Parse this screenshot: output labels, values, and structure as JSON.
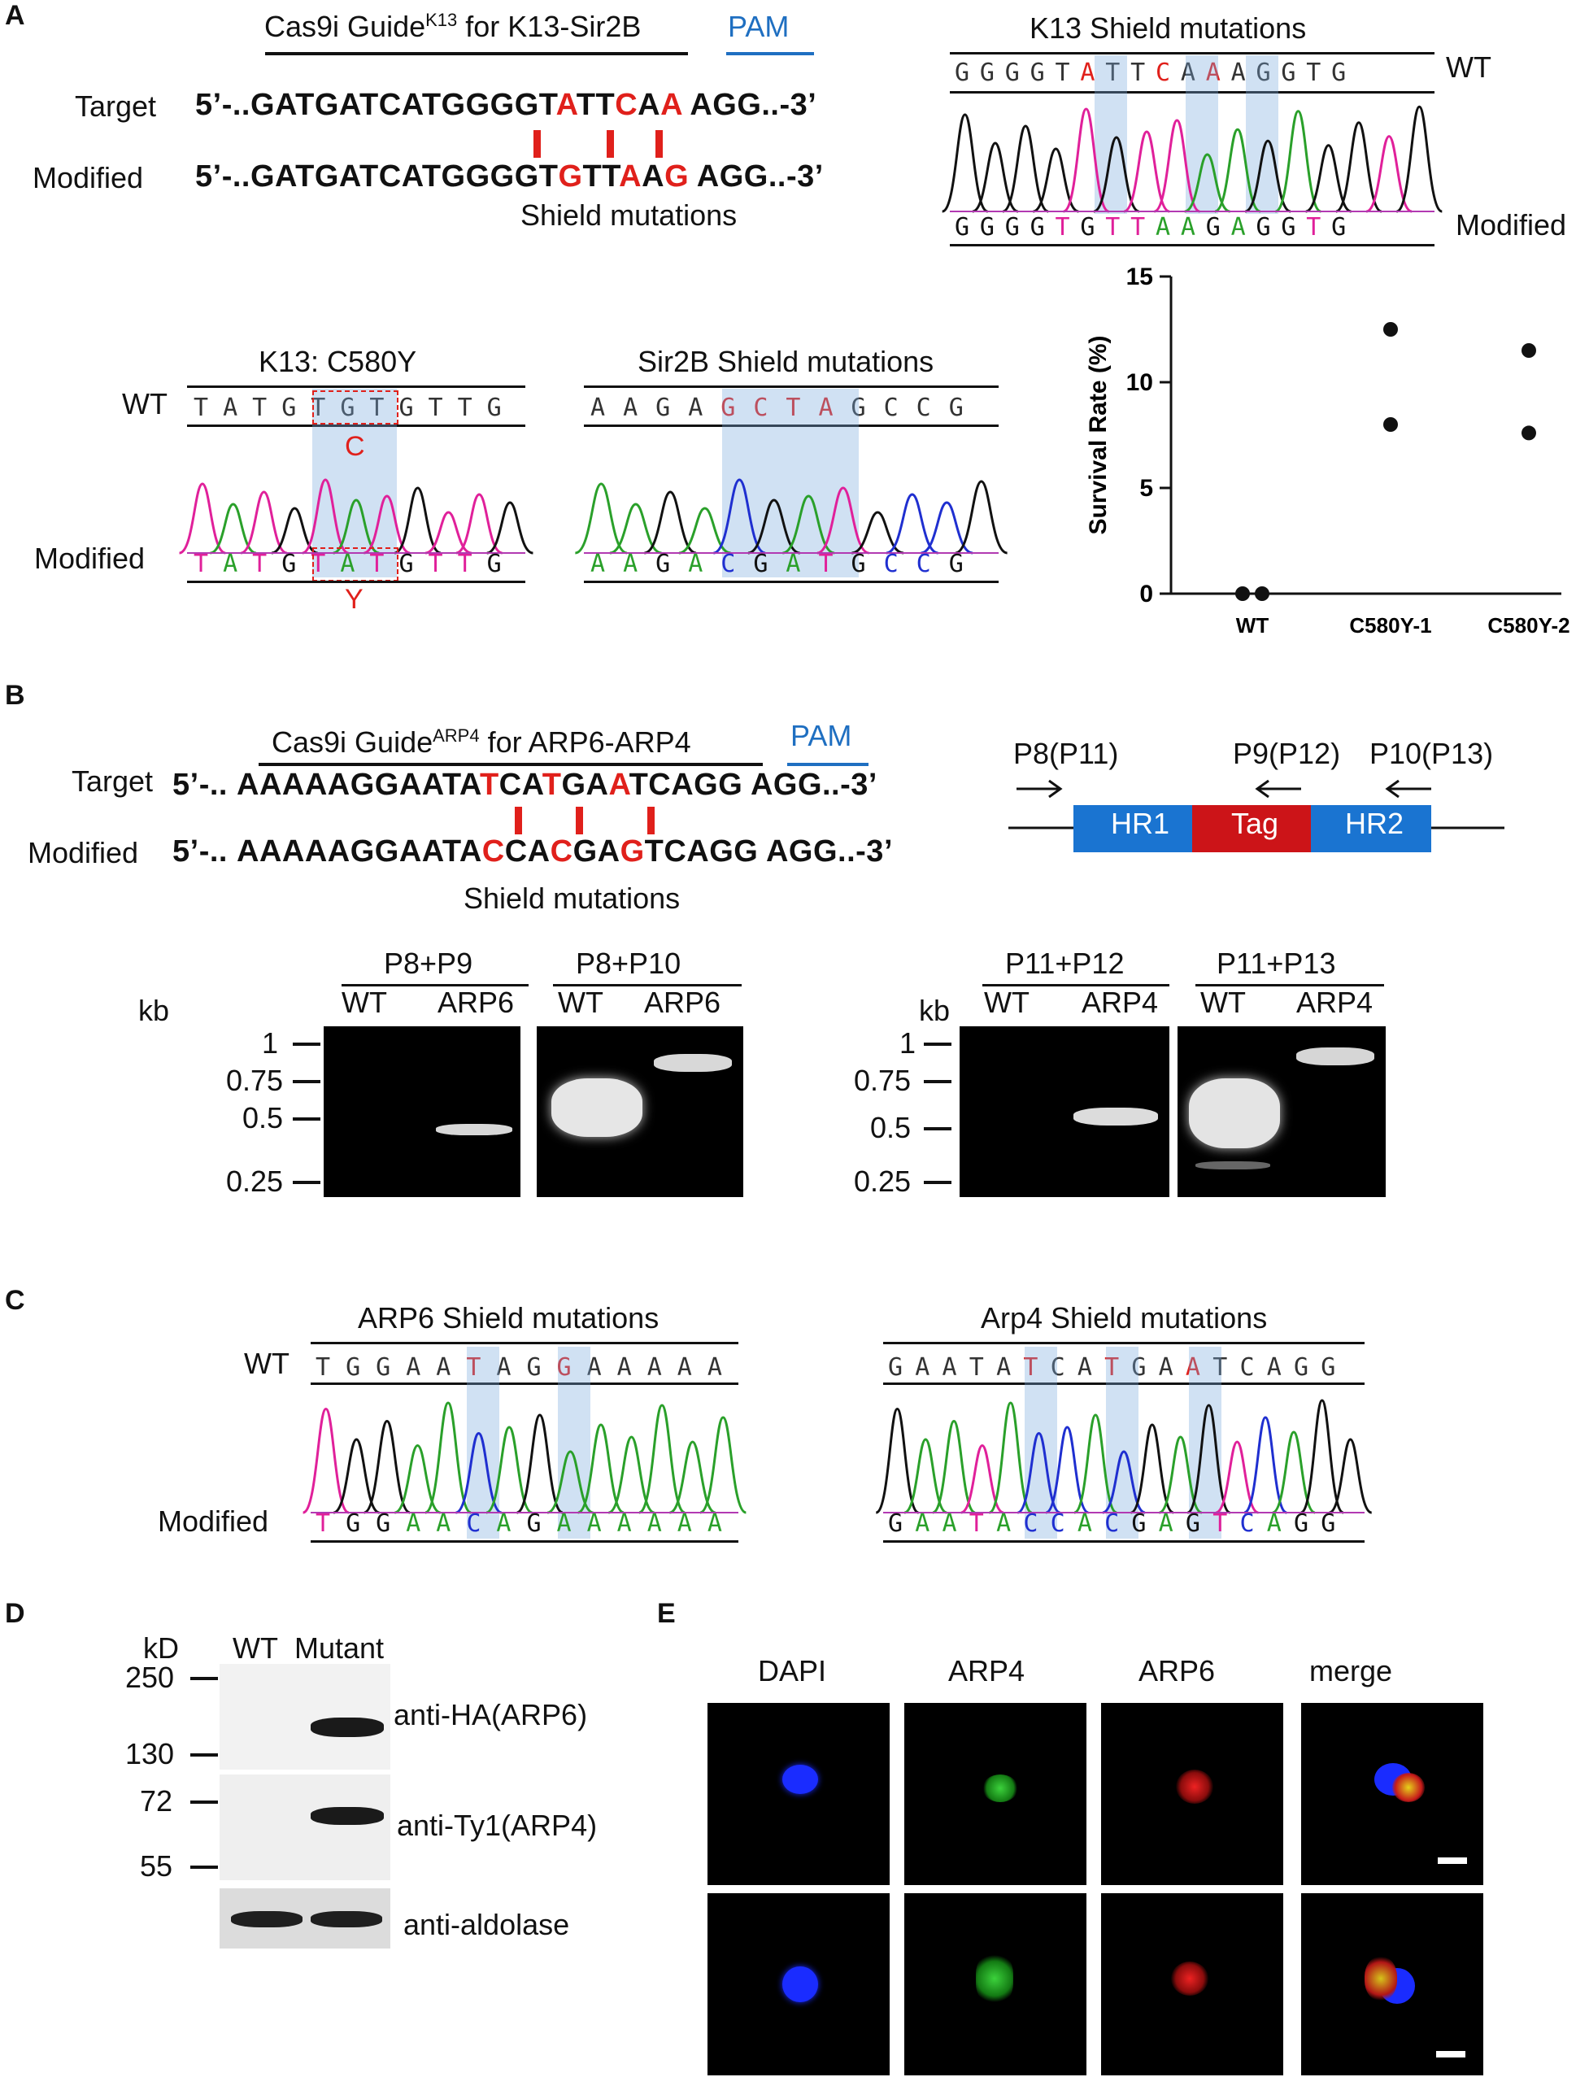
{
  "panels": {
    "A": "A",
    "B": "B",
    "C": "C",
    "D": "D",
    "E": "E"
  },
  "panelA": {
    "guide_label": "Cas9i Guide",
    "guide_sup": "K13",
    "guide_suffix": " for K13-Sir2B",
    "pam": "PAM",
    "target_label": "Target",
    "modified_label": "Modified",
    "target_prefix": "5’-..",
    "modified_prefix": "5’-..",
    "target_seq": [
      {
        "t": "GATGATCATGGGGT",
        "red": false
      },
      {
        "t": "A",
        "red": true
      },
      {
        "t": "TT",
        "red": false
      },
      {
        "t": "C",
        "red": true
      },
      {
        "t": "A",
        "red": false
      },
      {
        "t": "A",
        "red": true
      },
      {
        "t": " AGG..-3’",
        "red": false
      }
    ],
    "modified_seq": [
      {
        "t": "GATGATCATGGGGT",
        "red": false
      },
      {
        "t": "G",
        "red": true
      },
      {
        "t": "TT",
        "red": false
      },
      {
        "t": "A",
        "red": true
      },
      {
        "t": "A",
        "red": false
      },
      {
        "t": "G",
        "red": true
      },
      {
        "t": " AGG..-3’",
        "red": false
      }
    ],
    "shield_label": "Shield mutations",
    "k13_title": "K13 Shield mutations",
    "k13_wt_label": "WT",
    "k13_mod_label": "Modified",
    "k13_wt_seq": "GGGGTATTCAAAGGTG",
    "k13_mod_seq": "GGGGTGTTAAGAGGTG",
    "c580_title": "K13: C580Y",
    "c580_wt_label": "WT",
    "c580_mod_label": "Modified",
    "c580_wt_seq": "TATGTGTGTTG",
    "c580_mod_seq": "TATGTATGTTG",
    "c580_c": "C",
    "c580_y": "Y",
    "sir2b_title": "Sir2B Shield mutations",
    "sir2b_wt_seq": "AAGAGCTAGCCG",
    "sir2b_mod_seq": "AAGACGATGCCG"
  },
  "chart_data": {
    "type": "scatter",
    "categories": [
      "WT",
      "C580Y-1",
      "C580Y-2"
    ],
    "series": [
      {
        "values": [
          [
            0,
            0
          ],
          [
            12.5,
            8.0
          ],
          [
            11.5,
            7.6
          ]
        ]
      }
    ],
    "ylabel": "Survival Rate (%)",
    "ylim": [
      0,
      15
    ],
    "yticks": [
      "0",
      "5",
      "10",
      "15"
    ]
  },
  "panelB": {
    "guide_label": "Cas9i Guide",
    "guide_sup": "ARP4",
    "guide_suffix": " for ARP6-ARP4",
    "pam": "PAM",
    "target_label": "Target",
    "modified_label": "Modified",
    "target_prefix": "5’-..",
    "modified_prefix": "5’-..",
    "target_seq": [
      {
        "t": "AAAAAGGAATA",
        "red": false
      },
      {
        "t": "T",
        "red": true
      },
      {
        "t": "CA",
        "red": false
      },
      {
        "t": "T",
        "red": true
      },
      {
        "t": "GA",
        "red": false
      },
      {
        "t": "A",
        "red": true
      },
      {
        "t": "TCAGG AGG..-3’",
        "red": false
      }
    ],
    "modified_seq": [
      {
        "t": "AAAAAGGAATA",
        "red": false
      },
      {
        "t": "C",
        "red": true
      },
      {
        "t": "CA",
        "red": false
      },
      {
        "t": "C",
        "red": true
      },
      {
        "t": "GA",
        "red": false
      },
      {
        "t": "G",
        "red": true
      },
      {
        "t": "TCAGG AGG..-3’",
        "red": false
      }
    ],
    "shield_label": "Shield mutations",
    "primers": {
      "p8": "P8(P11)",
      "p9": "P9(P12)",
      "p10": "P10(P13)"
    },
    "construct": {
      "hr1": "HR1",
      "tag": "Tag",
      "hr2": "HR2"
    },
    "gel_groups": [
      {
        "title": "P8+P9",
        "lanes": [
          "WT",
          "ARP6"
        ]
      },
      {
        "title": "P8+P10",
        "lanes": [
          "WT",
          "ARP6"
        ]
      },
      {
        "title": "P11+P12",
        "lanes": [
          "WT",
          "ARP4"
        ]
      },
      {
        "title": "P11+P13",
        "lanes": [
          "WT",
          "ARP4"
        ]
      }
    ],
    "kb_label": "kb",
    "markers": [
      "1",
      "0.75",
      "0.5",
      "0.25"
    ]
  },
  "panelC": {
    "arp6_title": "ARP6 Shield mutations",
    "arp6_wt_seq": "TGGAATAGGAAAAA",
    "arp6_mod_seq": "TGGAACAGAAAAAA",
    "arp4_title": "Arp4 Shield mutations",
    "arp4_wt_seq": "GAATATCATGAATCAGG",
    "arp4_mod_seq": "GAATACCACGAGTCAGG",
    "wt_label": "WT",
    "mod_label": "Modified"
  },
  "panelD": {
    "kd_label": "kD",
    "lanes": [
      "WT",
      "Mutant"
    ],
    "markers": [
      "250",
      "130",
      "72",
      "55"
    ],
    "blots": [
      "anti-HA(ARP6)",
      "anti-Ty1(ARP4)",
      "anti-aldolase"
    ]
  },
  "panelE": {
    "columns": [
      "DAPI",
      "ARP4",
      "ARP6",
      "merge"
    ]
  },
  "colors": {
    "red": "#e0201b",
    "blue": "#1f6fc1",
    "highlight": "#bcd6ee",
    "trace_A": "#2aa02a",
    "trace_C": "#1f2fd0",
    "trace_G": "#111111",
    "trace_T": "#e0209a"
  }
}
